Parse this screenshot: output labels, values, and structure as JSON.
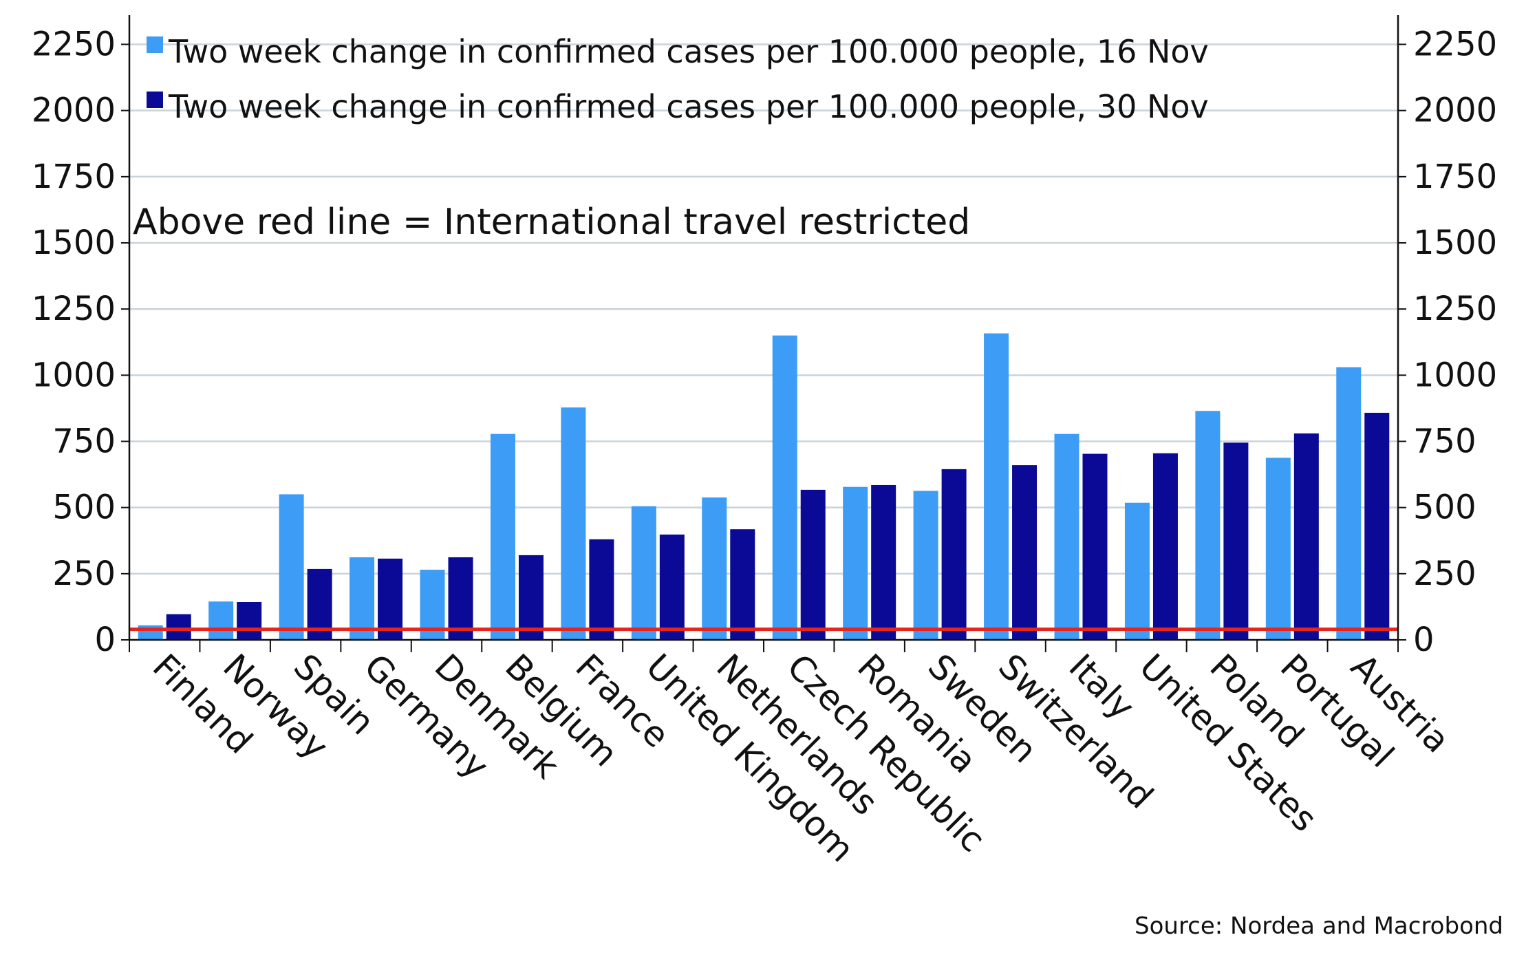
{
  "chart_data": {
    "type": "bar",
    "title": "",
    "xlabel": "",
    "ylabel": "",
    "categories": [
      "Finland",
      "Norway",
      "Spain",
      "Germany",
      "Denmark",
      "Belgium",
      "France",
      "United Kingdom",
      "Netherlands",
      "Czech Republic",
      "Romania",
      "Sweden",
      "Switzerland",
      "Italy",
      "United States",
      "Poland",
      "Portugal",
      "Austria"
    ],
    "series": [
      {
        "name": "Two week change in confirmed cases per 100.000 people, 16 Nov",
        "color": "#3d9cf5",
        "values": [
          55,
          145,
          550,
          312,
          265,
          778,
          878,
          505,
          538,
          1150,
          578,
          563,
          1158,
          778,
          518,
          865,
          688,
          1030
        ]
      },
      {
        "name": "Two week change in confirmed cases per 100.000 people, 30 Nov",
        "color": "#0a0a96",
        "values": [
          97,
          143,
          268,
          307,
          312,
          320,
          380,
          398,
          418,
          567,
          585,
          645,
          660,
          703,
          705,
          745,
          780,
          858
        ]
      }
    ],
    "reference_line": {
      "value": 40,
      "color": "#e8241c"
    },
    "ylim": [
      0,
      2350
    ],
    "yticks": [
      0,
      250,
      500,
      750,
      1000,
      1250,
      1500,
      1750,
      2000,
      2250
    ],
    "grid": true,
    "legend_position": "top-left",
    "annotation": "Above red line = International travel restricted",
    "source": "Source: Nordea and Macrobond"
  }
}
